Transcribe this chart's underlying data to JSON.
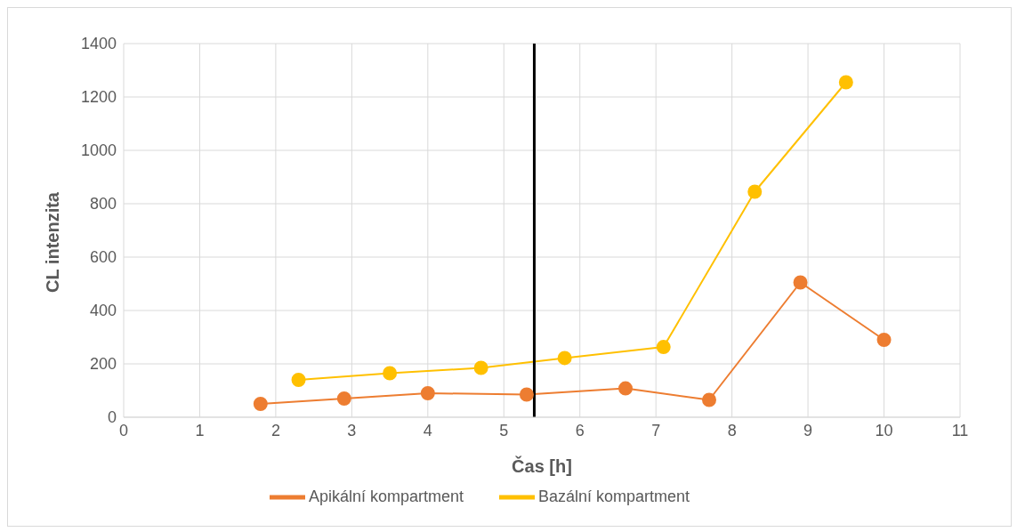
{
  "chart_data": {
    "type": "line",
    "xlabel": "Čas [h]",
    "ylabel": "CL intenzita",
    "xlim": [
      0,
      11
    ],
    "xticks": [
      0,
      1,
      2,
      3,
      4,
      5,
      6,
      7,
      8,
      9,
      10,
      11
    ],
    "ylim": [
      0,
      1400
    ],
    "yticks": [
      0,
      200,
      400,
      600,
      800,
      1000,
      1200,
      1400
    ],
    "grid": true,
    "legend": "bottom",
    "marker": "circle",
    "line_style": "solid",
    "series": [
      {
        "name": "Apikální kompartment",
        "color": "#ed7d31",
        "x": [
          1.8,
          2.9,
          4.0,
          5.3,
          6.6,
          7.7,
          8.9,
          10.0
        ],
        "values": [
          50,
          70,
          90,
          85,
          108,
          65,
          505,
          290
        ]
      },
      {
        "name": "Bazální kompartment",
        "color": "#ffc000",
        "x": [
          2.3,
          3.5,
          4.7,
          5.8,
          7.1,
          8.3,
          9.5
        ],
        "values": [
          140,
          165,
          185,
          222,
          263,
          845,
          1255
        ]
      }
    ],
    "ref_lines": [
      {
        "axis": "x",
        "value": 5.4,
        "color": "#000000",
        "line_style": "solid"
      }
    ]
  }
}
